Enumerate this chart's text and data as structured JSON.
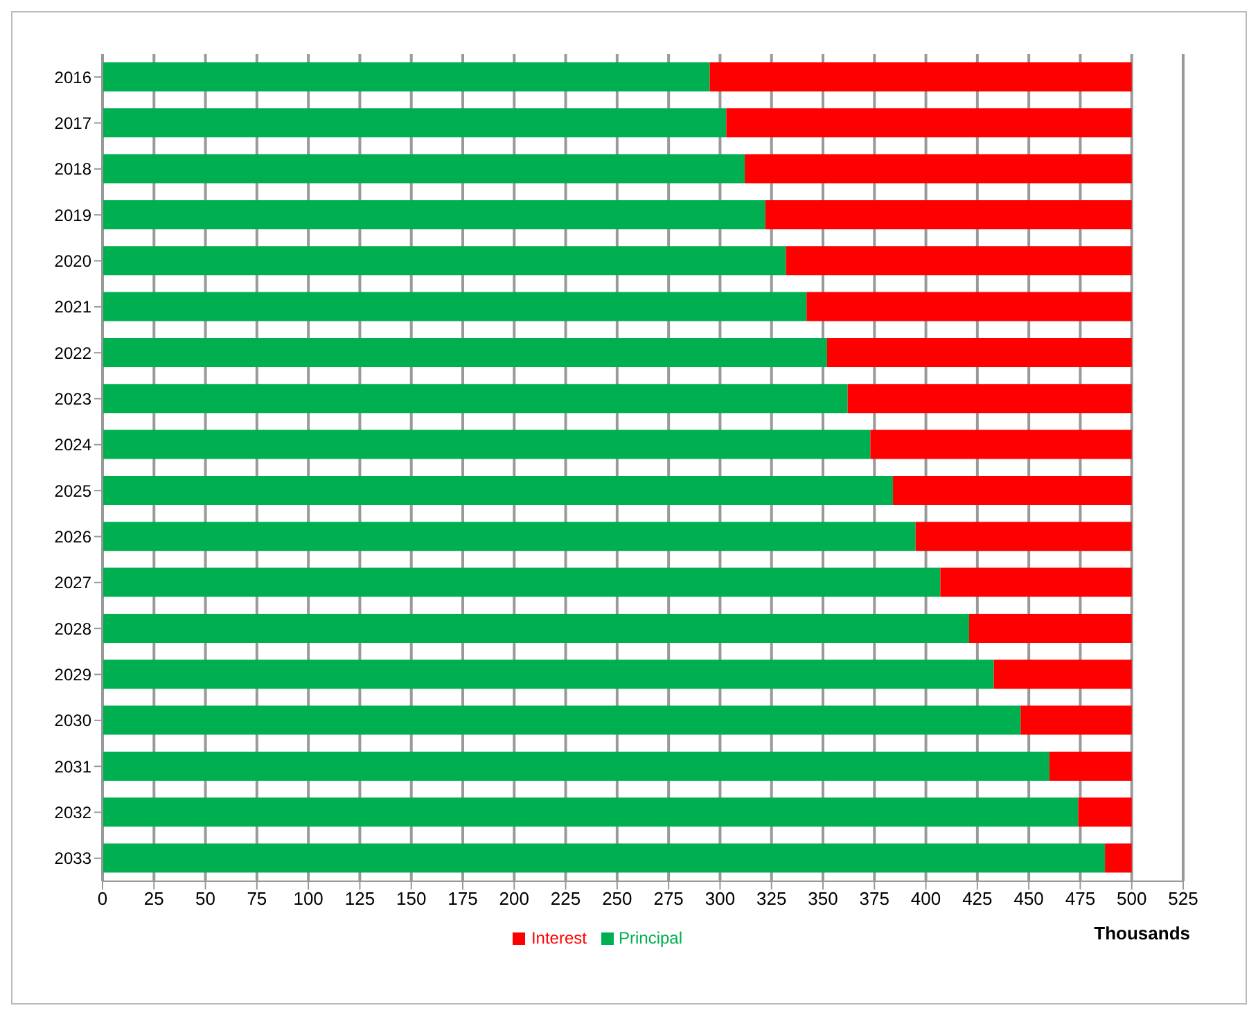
{
  "chart_data": {
    "type": "bar",
    "orientation": "horizontal",
    "stacked": true,
    "xlabel": "Thousands",
    "categories": [
      "2016",
      "2017",
      "2018",
      "2019",
      "2020",
      "2021",
      "2022",
      "2023",
      "2024",
      "2025",
      "2026",
      "2027",
      "2028",
      "2029",
      "2030",
      "2031",
      "2032",
      "2033"
    ],
    "series": [
      {
        "name": "Principal",
        "color": "#00b050",
        "values": [
          295,
          303,
          312,
          322,
          332,
          342,
          352,
          362,
          373,
          384,
          395,
          407,
          421,
          433,
          446,
          460,
          474,
          487
        ]
      },
      {
        "name": "Interest",
        "color": "#ff0000",
        "values": [
          205,
          197,
          188,
          178,
          168,
          158,
          148,
          138,
          127,
          116,
          105,
          93,
          79,
          67,
          54,
          40,
          26,
          13
        ]
      }
    ],
    "xlim": [
      0,
      525
    ],
    "xticks": [
      0,
      25,
      50,
      75,
      100,
      125,
      150,
      175,
      200,
      225,
      250,
      275,
      300,
      325,
      350,
      375,
      400,
      425,
      450,
      475,
      500,
      525
    ],
    "grid": "x",
    "legend": "bottom"
  }
}
